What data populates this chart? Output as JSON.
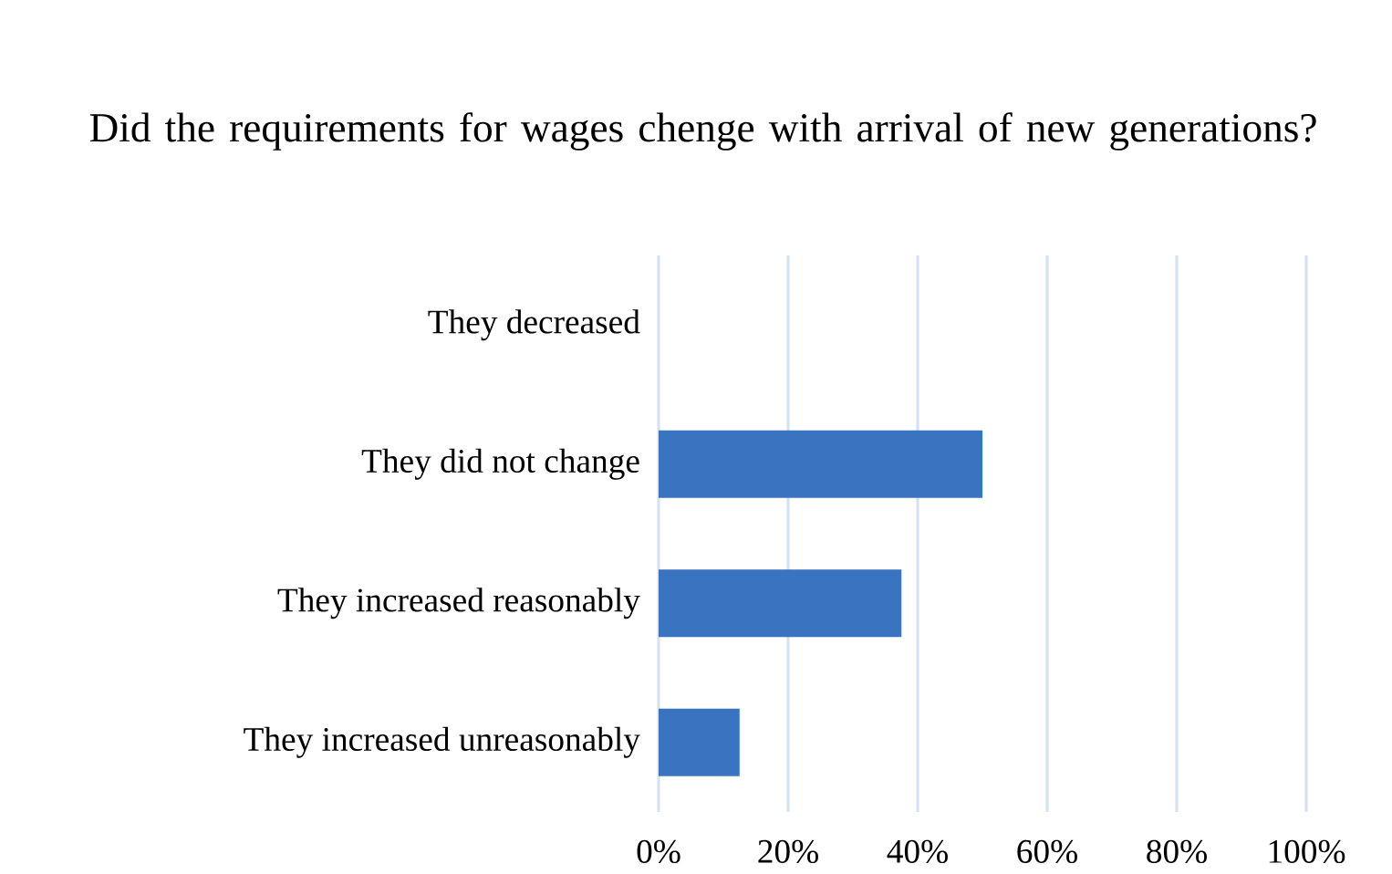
{
  "chart_data": {
    "type": "bar",
    "orientation": "horizontal",
    "title": "Did the requirements for wages chenge with arrival of new generations?",
    "categories": [
      "They decreased",
      "They did not change",
      "They increased reasonably",
      "They increased unreasonably"
    ],
    "values": [
      0,
      50,
      37.5,
      12.5
    ],
    "color": "#3a73c0",
    "xlim": [
      0,
      100
    ],
    "xticks": [
      {
        "value": 0,
        "label": "0%"
      },
      {
        "value": 20,
        "label": "20%"
      },
      {
        "value": 40,
        "label": "40%"
      },
      {
        "value": 60,
        "label": "60%"
      },
      {
        "value": 80,
        "label": "80%"
      },
      {
        "value": 100,
        "label": "100%"
      }
    ],
    "grid": "x"
  }
}
